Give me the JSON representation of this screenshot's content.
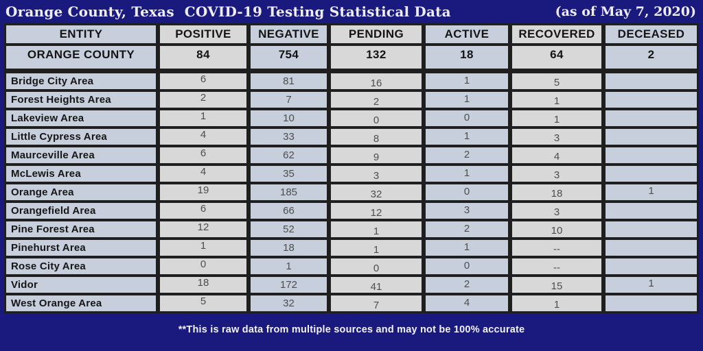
{
  "title": {
    "location": "Orange County, Texas",
    "subject": "COVID-19 Testing Statistical Data",
    "as_of": "(as of  May 7, 2020)"
  },
  "chart_data": {
    "type": "table",
    "title": "Orange County, Texas COVID-19 Testing Statistical Data (as of May 7, 2020)",
    "columns": [
      "ENTITY",
      "POSITIVE",
      "NEGATIVE",
      "PENDING",
      "ACTIVE",
      "RECOVERED",
      "DECEASED"
    ],
    "summary_row": {
      "entity": "ORANGE COUNTY",
      "values": [
        "84",
        "754",
        "132",
        "18",
        "64",
        "2"
      ]
    },
    "rows": [
      {
        "entity": "Bridge City Area",
        "values": [
          "6",
          "81",
          "16",
          "1",
          "5",
          ""
        ]
      },
      {
        "entity": "Forest Heights Area",
        "values": [
          "2",
          "7",
          "2",
          "1",
          "1",
          ""
        ]
      },
      {
        "entity": "Lakeview Area",
        "values": [
          "1",
          "10",
          "0",
          "0",
          "1",
          ""
        ]
      },
      {
        "entity": "Little Cypress Area",
        "values": [
          "4",
          "33",
          "8",
          "1",
          "3",
          ""
        ]
      },
      {
        "entity": "Maurceville Area",
        "values": [
          "6",
          "62",
          "9",
          "2",
          "4",
          ""
        ]
      },
      {
        "entity": "McLewis Area",
        "values": [
          "4",
          "35",
          "3",
          "1",
          "3",
          ""
        ]
      },
      {
        "entity": "Orange Area",
        "values": [
          "19",
          "185",
          "32",
          "0",
          "18",
          "1"
        ]
      },
      {
        "entity": "Orangefield Area",
        "values": [
          "6",
          "66",
          "12",
          "3",
          "3",
          ""
        ]
      },
      {
        "entity": "Pine Forest Area",
        "values": [
          "12",
          "52",
          "1",
          "2",
          "10",
          ""
        ]
      },
      {
        "entity": "Pinehurst Area",
        "values": [
          "1",
          "18",
          "1",
          "1",
          "--",
          ""
        ]
      },
      {
        "entity": "Rose City Area",
        "values": [
          "0",
          "1",
          "0",
          "0",
          "--",
          ""
        ]
      },
      {
        "entity": "Vidor",
        "values": [
          "18",
          "172",
          "41",
          "2",
          "15",
          "1"
        ]
      },
      {
        "entity": "West Orange Area",
        "values": [
          "5",
          "32",
          "7",
          "4",
          "1",
          ""
        ]
      }
    ]
  },
  "footer_note": "**This is raw data from multiple sources and may not be 100% accurate",
  "colors": {
    "background": "#1a1a7e",
    "grid_border": "#1f1f1f",
    "cell_blue": "#c7cfdc",
    "cell_gray": "#d8d8d8",
    "header_text": "#141414",
    "value_text": "#4d4d4d",
    "title_text": "#efedf8"
  }
}
